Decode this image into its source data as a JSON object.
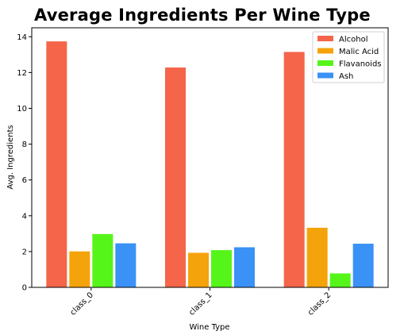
{
  "chart_data": {
    "type": "bar",
    "title": "Average Ingredients Per Wine Type",
    "xlabel": "Wine Type",
    "ylabel": "Avg. Ingredients",
    "categories": [
      "class_0",
      "class_1",
      "class_2"
    ],
    "ylim": [
      0,
      14.5
    ],
    "yticks": [
      0,
      2,
      4,
      6,
      8,
      10,
      12,
      14
    ],
    "grid": false,
    "legend_position": "top-right",
    "series": [
      {
        "name": "Alcohol",
        "color": "#f4654a",
        "values": [
          13.74,
          12.28,
          13.15
        ]
      },
      {
        "name": "Malic Acid",
        "color": "#f5a30a",
        "values": [
          2.01,
          1.93,
          3.33
        ]
      },
      {
        "name": "Flavanoids",
        "color": "#55f51a",
        "values": [
          2.98,
          2.08,
          0.78
        ]
      },
      {
        "name": "Ash",
        "color": "#3a91f6",
        "values": [
          2.46,
          2.24,
          2.44
        ]
      }
    ]
  }
}
